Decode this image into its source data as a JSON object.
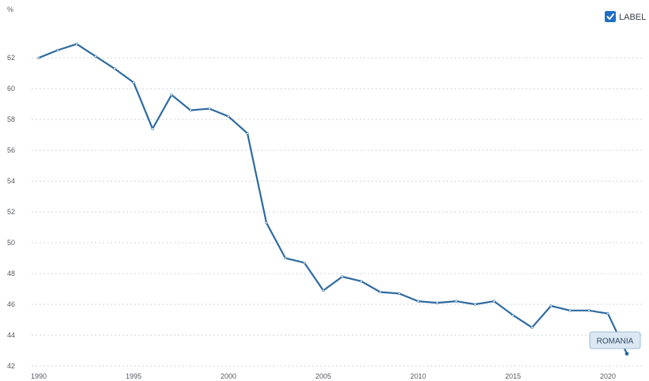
{
  "chart_data": {
    "type": "line",
    "unit_label": "%",
    "legend_label": "LABEL",
    "series_label": "ROMANIA",
    "x_ticks": [
      1990,
      1995,
      2000,
      2005,
      2010,
      2015,
      2020
    ],
    "y_ticks": [
      42,
      44,
      46,
      48,
      50,
      52,
      54,
      56,
      58,
      60,
      62
    ],
    "xlim": [
      1990,
      2021.5
    ],
    "ylim": [
      42,
      63.5
    ],
    "grid": true,
    "series": [
      {
        "name": "ROMANIA",
        "color": "#2e6aa0",
        "x": [
          1990,
          1991,
          1992,
          1993,
          1994,
          1995,
          1996,
          1997,
          1998,
          1999,
          2000,
          2001,
          2002,
          2003,
          2004,
          2005,
          2006,
          2007,
          2008,
          2009,
          2010,
          2011,
          2012,
          2013,
          2014,
          2015,
          2016,
          2017,
          2018,
          2019,
          2020,
          2021
        ],
        "y": [
          62.0,
          62.5,
          62.9,
          62.1,
          61.3,
          60.4,
          57.4,
          59.6,
          58.6,
          58.7,
          58.2,
          57.1,
          51.3,
          49.0,
          48.7,
          46.9,
          47.8,
          47.5,
          46.8,
          46.7,
          46.2,
          46.1,
          46.2,
          46.0,
          46.2,
          45.3,
          44.5,
          45.9,
          45.6,
          45.6,
          45.4,
          42.8
        ]
      }
    ],
    "colors": {
      "line": "#2e6aa0",
      "grid": "#cfd4d9",
      "checkbox": "#1f6fc4",
      "label_fill": "#dbe8f4",
      "label_stroke": "#9fbcd8"
    },
    "icons": {
      "legend": "checkbox-checked-icon"
    }
  }
}
